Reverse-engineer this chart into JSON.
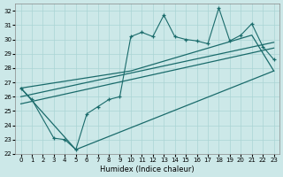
{
  "xlabel": "Humidex (Indice chaleur)",
  "xlim": [
    -0.5,
    23.5
  ],
  "ylim": [
    22,
    32.5
  ],
  "xticks": [
    0,
    1,
    2,
    3,
    4,
    5,
    6,
    7,
    8,
    9,
    10,
    11,
    12,
    13,
    14,
    15,
    16,
    17,
    18,
    19,
    20,
    21,
    22,
    23
  ],
  "yticks": [
    22,
    23,
    24,
    25,
    26,
    27,
    28,
    29,
    30,
    31,
    32
  ],
  "bg_color": "#cce8e8",
  "line_color": "#1a6b6b",
  "grid_color": "#aad4d4",
  "data_line": {
    "x": [
      0,
      1,
      3,
      4,
      5,
      6,
      7,
      8,
      9,
      10,
      11,
      12,
      13,
      14,
      15,
      16,
      17,
      18,
      19,
      20,
      21,
      22,
      23
    ],
    "y": [
      26.6,
      25.8,
      23.1,
      23.0,
      22.3,
      24.8,
      25.3,
      25.8,
      26.0,
      30.2,
      30.5,
      30.2,
      31.7,
      30.2,
      30.0,
      29.9,
      29.7,
      32.2,
      29.9,
      30.3,
      31.1,
      29.5,
      28.6
    ]
  },
  "upper_poly": {
    "x": [
      0,
      10,
      21,
      23
    ],
    "y": [
      26.6,
      27.8,
      30.3,
      27.8
    ]
  },
  "lower_poly": {
    "x": [
      0,
      5,
      23
    ],
    "y": [
      26.6,
      22.3,
      27.8
    ]
  },
  "trend1": {
    "x": [
      0,
      23
    ],
    "y": [
      26.0,
      29.8
    ]
  },
  "trend2": {
    "x": [
      0,
      23
    ],
    "y": [
      25.5,
      29.4
    ]
  }
}
